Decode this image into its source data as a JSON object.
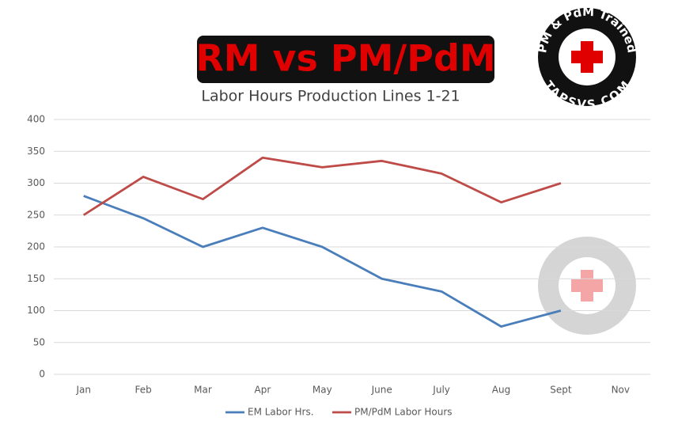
{
  "chart_data": {
    "type": "line",
    "title": "RM vs PM/PdM",
    "subtitle": "Labor Hours Production Lines 1-21",
    "logo": {
      "top_text": "PM & PdM Trained",
      "bottom_text": "TAPSVS.COM"
    },
    "categories": [
      "Jan",
      "Feb",
      "Mar",
      "Apr",
      "May",
      "June",
      "July",
      "Aug",
      "Sept",
      "Nov"
    ],
    "series": [
      {
        "name": "EM Labor Hrs.",
        "color": "#4a7ebb",
        "values": [
          280,
          245,
          200,
          230,
          200,
          150,
          130,
          75,
          100,
          null
        ]
      },
      {
        "name": "PM/PdM Labor Hours",
        "color": "#be4b48",
        "values": [
          250,
          310,
          275,
          340,
          325,
          335,
          315,
          270,
          300,
          null
        ]
      }
    ],
    "ylim": [
      0,
      400
    ],
    "yticks": [
      0,
      50,
      100,
      150,
      200,
      250,
      300,
      350,
      400
    ],
    "grid": true,
    "legend": "bottom"
  }
}
